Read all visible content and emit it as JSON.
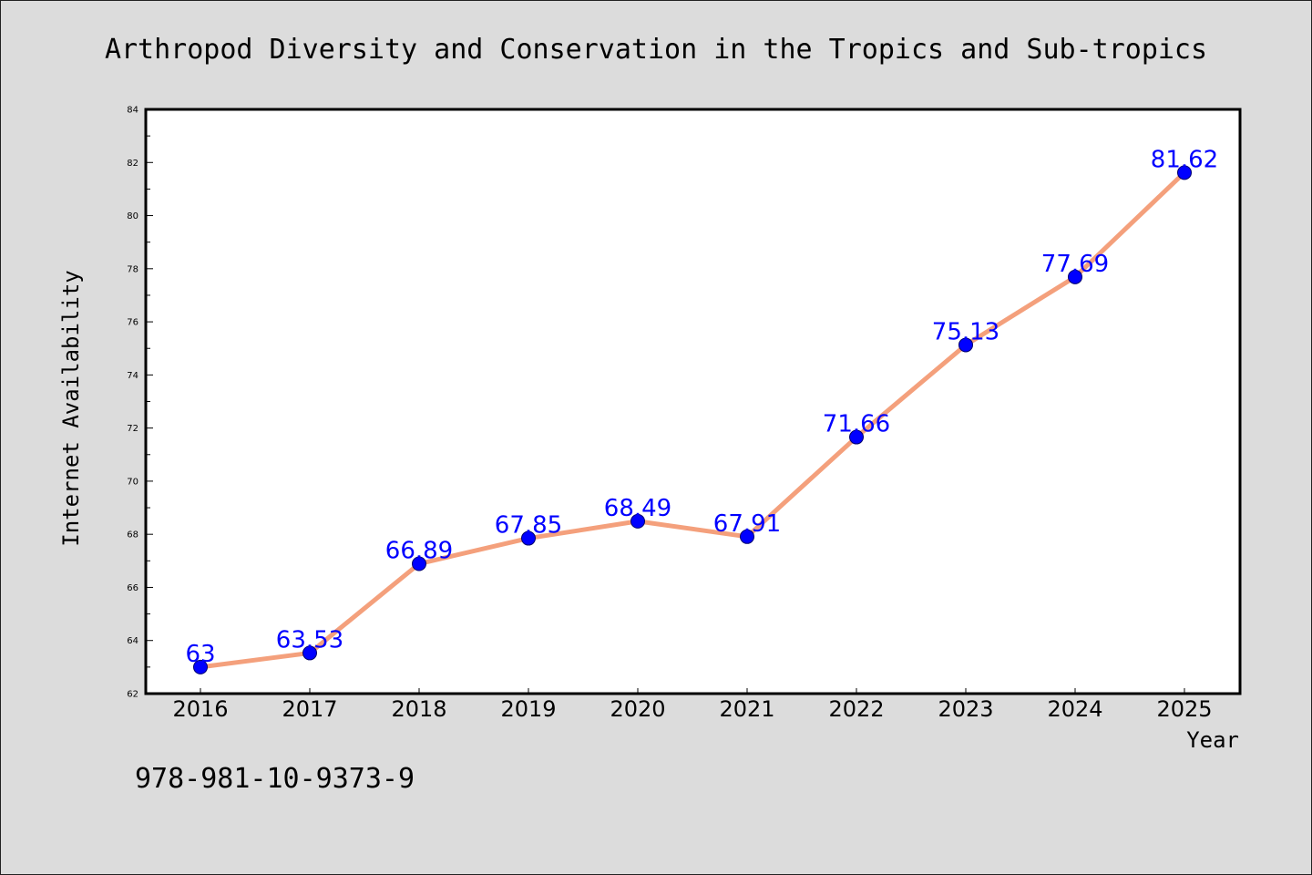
{
  "chart_data": {
    "type": "line",
    "title": "Arthropod Diversity and Conservation in the Tropics and Sub-tropics",
    "xlabel": "Year",
    "ylabel": "Internet Availability",
    "x": [
      "2016",
      "2017",
      "2018",
      "2019",
      "2020",
      "2021",
      "2022",
      "2023",
      "2024",
      "2025"
    ],
    "series": [
      {
        "values": [
          63,
          63.53,
          66.89,
          67.85,
          68.49,
          67.91,
          71.66,
          75.13,
          77.69,
          81.62
        ],
        "labels": [
          "63",
          "63.53",
          "66.89",
          "67.85",
          "68.49",
          "67.91",
          "71.66",
          "75.13",
          "77.69",
          "81.62"
        ]
      }
    ],
    "ylim": [
      62,
      84
    ],
    "yticks": [
      "62",
      "64",
      "66",
      "68",
      "70",
      "72",
      "74",
      "76",
      "78",
      "80",
      "82",
      "84"
    ],
    "grid": false,
    "line_color": "#f4a07c",
    "marker_color": "#0000ff",
    "label_color": "#0000ff"
  },
  "footer": {
    "isbn": "978-981-10-9373-9"
  }
}
